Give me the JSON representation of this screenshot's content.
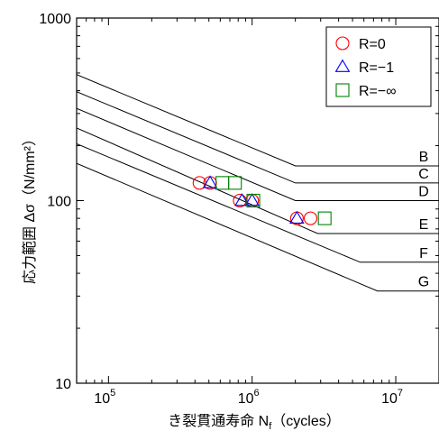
{
  "chart_data": {
    "type": "scatter",
    "xlabel": "き裂貫通寿命 N",
    "xlabel_sub": "f",
    "xlabel_unit": "（cycles）",
    "ylabel": "応力範囲 Δσ（N/mm²）",
    "xscale": "log",
    "yscale": "log",
    "xlim": [
      60000,
      20000000
    ],
    "ylim": [
      10,
      1000
    ],
    "grid": false,
    "legend_position": "top-right",
    "x_tick_labels": [
      {
        "base": "10",
        "exp": "5",
        "value": 100000
      },
      {
        "base": "10",
        "exp": "6",
        "value": 1000000
      },
      {
        "base": "10",
        "exp": "7",
        "value": 10000000
      }
    ],
    "y_tick_labels": [
      {
        "label": "10",
        "value": 10
      },
      {
        "label": "100",
        "value": 100
      },
      {
        "label": "1000",
        "value": 1000
      }
    ],
    "design_curves": [
      {
        "name": "B",
        "x": [
          60000,
          2000000,
          20000000
        ],
        "y": [
          490,
          155,
          155
        ]
      },
      {
        "name": "C",
        "x": [
          60000,
          2000000,
          20000000
        ],
        "y": [
          395,
          125,
          125
        ]
      },
      {
        "name": "D",
        "x": [
          60000,
          2000000,
          20000000
        ],
        "y": [
          320,
          100,
          100
        ]
      },
      {
        "name": "E",
        "x": [
          60000,
          2860000,
          20000000
        ],
        "y": [
          250,
          66,
          66
        ]
      },
      {
        "name": "F",
        "x": [
          60000,
          5650000,
          20000000
        ],
        "y": [
          205,
          46,
          46
        ]
      },
      {
        "name": "G",
        "x": [
          60000,
          7440000,
          20000000
        ],
        "y": [
          160,
          32,
          32
        ]
      }
    ],
    "series": [
      {
        "name": "R=0",
        "marker": "circle",
        "color": "#ff0000",
        "x": [
          430000,
          510000,
          820000,
          1000000,
          2050000,
          2550000
        ],
        "y": [
          125,
          125,
          100,
          100,
          80,
          80
        ]
      },
      {
        "name": "R=−1",
        "marker": "triangle",
        "color": "#0000ff",
        "x": [
          510000,
          850000,
          1000000,
          2050000
        ],
        "y": [
          125,
          100,
          100,
          80
        ]
      },
      {
        "name": "R=−∞",
        "marker": "square",
        "color": "#008000",
        "x": [
          620000,
          760000,
          1020000,
          3200000
        ],
        "y": [
          125,
          125,
          100,
          80
        ]
      }
    ]
  },
  "colors": {
    "axis": "#000000",
    "curve": "#000000"
  }
}
